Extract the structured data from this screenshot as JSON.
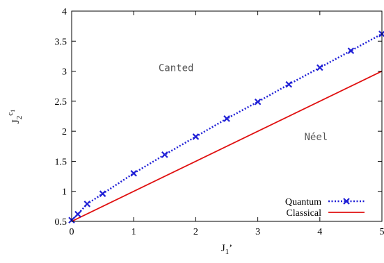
{
  "chart_data": {
    "type": "line",
    "xlabel": "J",
    "xlabel_sub": "1",
    "xlabel_prime": "’",
    "ylabel": "J",
    "ylabel_sub": "2",
    "ylabel_sup": "c",
    "ylabel_sup_sub": "1",
    "xlim": [
      0,
      5
    ],
    "ylim": [
      0.5,
      4
    ],
    "xticks": [
      "0",
      "1",
      "2",
      "3",
      "4",
      "5"
    ],
    "yticks": [
      "0.5",
      "1",
      "1.5",
      "2",
      "2.5",
      "3",
      "3.5",
      "4"
    ],
    "grid": false,
    "legend_position": "bottom-right",
    "annotations": [
      {
        "text": "Canted",
        "x": 1.4,
        "y": 3.0
      },
      {
        "text": "Néel",
        "x": 3.75,
        "y": 1.85
      }
    ],
    "series": [
      {
        "name": "Quantum",
        "color": "#1f1fd6",
        "style": "dotted",
        "marker": "x",
        "x": [
          0,
          0.1,
          0.25,
          0.5,
          1.0,
          1.5,
          2.0,
          2.5,
          3.0,
          3.5,
          4.0,
          4.5,
          5.0
        ],
        "y": [
          0.52,
          0.62,
          0.79,
          0.96,
          1.3,
          1.61,
          1.91,
          2.21,
          2.49,
          2.78,
          3.06,
          3.34,
          3.62
        ]
      },
      {
        "name": "Classical",
        "color": "#e01010",
        "style": "solid",
        "marker": "none",
        "x": [
          0,
          5
        ],
        "y": [
          0.5,
          3.0
        ]
      }
    ]
  }
}
